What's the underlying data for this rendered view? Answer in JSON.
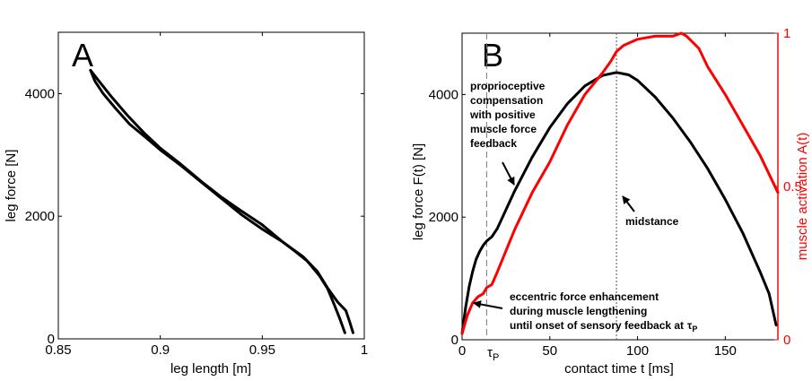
{
  "chart_data": [
    {
      "type": "line",
      "panel_label": "A",
      "xlabel": "leg length [m]",
      "ylabel": "leg force [N]",
      "xlim": [
        0.85,
        1.0
      ],
      "ylim": [
        0,
        5000
      ],
      "xticks": [
        0.85,
        0.9,
        0.95,
        1
      ],
      "xtick_labels": [
        "0.85",
        "0.9",
        "0.95",
        "1"
      ],
      "yticks": [
        0,
        2000,
        4000
      ],
      "ytick_labels": [
        "0",
        "2000",
        "4000"
      ],
      "grid": false,
      "series": [
        {
          "color": "#000000",
          "x": [
            0.8658,
            0.868,
            0.872,
            0.878,
            0.885,
            0.893,
            0.9,
            0.91,
            0.92,
            0.93,
            0.94,
            0.95,
            0.96,
            0.966,
            0.972,
            0.978,
            0.982,
            0.985,
            0.988,
            0.9905
          ],
          "y": [
            4380,
            4200,
            4000,
            3760,
            3500,
            3280,
            3080,
            2830,
            2560,
            2290,
            2020,
            1790,
            1580,
            1430,
            1270,
            1030,
            820,
            580,
            330,
            100
          ]
        },
        {
          "color": "#000000",
          "x": [
            0.8658,
            0.87,
            0.876,
            0.884,
            0.892,
            0.9,
            0.91,
            0.92,
            0.93,
            0.94,
            0.95,
            0.96,
            0.97,
            0.977,
            0.982,
            0.987,
            0.991,
            0.993,
            0.9945
          ],
          "y": [
            4380,
            4200,
            3950,
            3640,
            3360,
            3110,
            2850,
            2570,
            2310,
            2080,
            1860,
            1580,
            1340,
            1100,
            830,
            600,
            460,
            260,
            100
          ]
        }
      ]
    },
    {
      "type": "line",
      "panel_label": "B",
      "xlabel": "contact time t [ms]",
      "ylabel": "leg force F(t) [N]",
      "ylabel_right": "muscle activation A(t)",
      "xlim": [
        0,
        180
      ],
      "ylim": [
        0,
        5000
      ],
      "ylim_right": [
        0,
        1
      ],
      "xticks": [
        0,
        50,
        100,
        150
      ],
      "xtick_labels": [
        "0",
        "50",
        "100",
        "150"
      ],
      "yticks": [
        0,
        2000,
        4000
      ],
      "ytick_labels": [
        "0",
        "2000",
        "4000"
      ],
      "yticks_right": [
        0,
        0.5,
        1
      ],
      "ytick_labels_right": [
        "0",
        "0.5",
        "1"
      ],
      "right_axis_color": "#ff0000",
      "grid": false,
      "series": [
        {
          "axis": "left",
          "color": "#000000",
          "x": [
            0,
            2,
            4,
            6,
            8,
            10,
            12,
            14,
            17,
            20,
            25,
            30,
            40,
            50,
            60,
            70,
            80,
            88,
            95,
            100,
            110,
            120,
            130,
            140,
            150,
            160,
            170,
            175,
            179
          ],
          "y": [
            100,
            520,
            860,
            1110,
            1310,
            1440,
            1540,
            1610,
            1680,
            1810,
            2120,
            2430,
            2980,
            3460,
            3850,
            4140,
            4310,
            4360,
            4320,
            4230,
            3960,
            3620,
            3230,
            2790,
            2290,
            1740,
            1100,
            750,
            240
          ]
        },
        {
          "axis": "right",
          "color": "#ff0000",
          "x": [
            0,
            3,
            6,
            9,
            12,
            14,
            17,
            20,
            25,
            30,
            40,
            50,
            60,
            70,
            80,
            85,
            88,
            92,
            100,
            110,
            120,
            125,
            128,
            135,
            140,
            150,
            160,
            170,
            180
          ],
          "y": [
            0.02,
            0.08,
            0.12,
            0.14,
            0.15,
            0.17,
            0.18,
            0.22,
            0.29,
            0.36,
            0.48,
            0.58,
            0.7,
            0.8,
            0.87,
            0.91,
            0.94,
            0.96,
            0.98,
            0.99,
            0.99,
            1.0,
            0.99,
            0.95,
            0.89,
            0.8,
            0.7,
            0.6,
            0.48
          ]
        }
      ],
      "reference_lines": [
        {
          "x": 14,
          "style": "dashed",
          "label": "τP"
        },
        {
          "x": 88,
          "style": "dotted"
        }
      ],
      "annotations": [
        {
          "text": "proprioceptive compensation with positive muscle force feedback",
          "lines": [
            "proprioceptive",
            "compensation",
            "with positive",
            "muscle force",
            "feedback"
          ]
        },
        {
          "text": "midstance",
          "lines": [
            "midstance"
          ]
        },
        {
          "text": "eccentric force enhancement during muscle lengthening until onset of sensory feedback at τP",
          "lines": [
            "eccentric force enhancement",
            "during muscle lengthening",
            "until onset of sensory feedback at"
          ],
          "tau_symbol": "τ",
          "tau_sub": "P"
        }
      ],
      "tau_tick_label": {
        "symbol": "τ",
        "sub": "P"
      }
    }
  ]
}
